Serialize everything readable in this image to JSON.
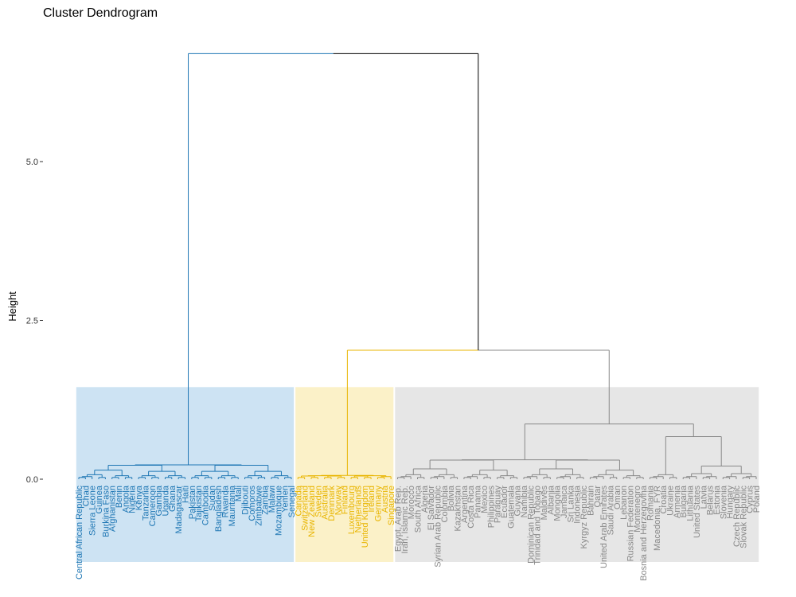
{
  "chart_data": {
    "type": "dendrogram",
    "title": "Cluster Dendrogram",
    "xlabel": "",
    "ylabel": "Height",
    "ylim": [
      -1.3,
      6.9
    ],
    "yticks": [
      0.0,
      2.5,
      5.0
    ],
    "ytick_labels": [
      "0.0",
      "2.5",
      "5.0"
    ],
    "grid": false,
    "cut_height": 1.45,
    "colors": {
      "cluster_1": "#1f77b4",
      "cluster_2": "#e8b500",
      "cluster_3": "#888888",
      "root": "#000000",
      "fill_1": "#cde3f3",
      "fill_2": "#fbf1c8",
      "fill_3": "#e6e6e6"
    },
    "clusters": [
      {
        "name": "cluster_1",
        "join_height": 6.7,
        "leaves": [
          "Central African Republic",
          "Chad",
          "Sierra Leone",
          "Guinea",
          "Burkina Faso",
          "Afghanistan",
          "Benin",
          "Angola",
          "Nigeria",
          "Kenya",
          "Tanzania",
          "Cameroon",
          "Gambia",
          "Uganda",
          "Ghana",
          "Madagascar",
          "Haiti",
          "Pakistan",
          "Tajikistan",
          "Cambodia",
          "Sudan",
          "Bangladesh",
          "Rwanda",
          "Mauritania",
          "Mali",
          "Djibouti",
          "Comoros",
          "Zimbabwe",
          "Zambia",
          "Malawi",
          "Mozambique",
          "Yemen",
          "Senegal"
        ]
      },
      {
        "name": "cluster_2",
        "join_height": 2.03,
        "leaves": [
          "Canada",
          "Switzerland",
          "New Zealand",
          "Sweden",
          "Australia",
          "Denmark",
          "Norway",
          "Finland",
          "Luxembourg",
          "Netherlands",
          "United Kingdom",
          "Ireland",
          "Germany",
          "Austria",
          "Singapore"
        ]
      },
      {
        "name": "cluster_3",
        "join_height": 2.03,
        "leaves": [
          "Egypt, Arab Rep.",
          "Iran, Islamic Rep.",
          "Morocco",
          "South Africa",
          "Algeria",
          "El Salvador",
          "Syrian Arab Republic",
          "Colombia",
          "Bolivia",
          "Kazakhstan",
          "Argentina",
          "Costa Rica",
          "Panama",
          "Mexico",
          "Philippines",
          "Paraguay",
          "Ecuador",
          "Guatemala",
          "Guyana",
          "Namibia",
          "Dominican Republic",
          "Trinidad and Tobago",
          "Maldives",
          "Albania",
          "Mongolia",
          "Jamaica",
          "Sri Lanka",
          "Indonesia",
          "Kyrgyz Republic",
          "Bahrain",
          "Qatar",
          "United Arab Emirates",
          "Saudi Arabia",
          "Oman",
          "Lebanon",
          "Russian Federation",
          "Montenegro",
          "Bosnia and Herzegovina",
          "Romania",
          "Macedonia, FYR",
          "Croatia",
          "Ukraine",
          "Armenia",
          "Bulgaria",
          "Lithuania",
          "United States",
          "Latvia",
          "Belarus",
          "Estonia",
          "Slovenia",
          "Hungary",
          "Czech Republic",
          "Slovak Republic",
          "Cyprus",
          "Poland"
        ]
      }
    ]
  }
}
